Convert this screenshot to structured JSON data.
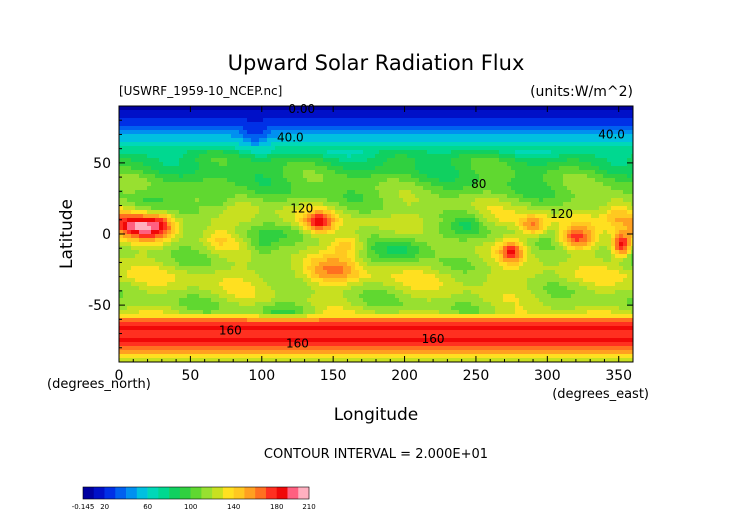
{
  "chart_data": {
    "type": "heatmap",
    "title": "Upward Solar Radiation Flux",
    "source_label": "[USWRF_1959-10_NCEP.nc]",
    "units_label": "(units:W/m^2)",
    "xlabel": "Longitude",
    "ylabel": "Latitude",
    "x_unit_label": "(degrees_east)",
    "y_unit_label": "(degrees_north)",
    "xlim": [
      0,
      360
    ],
    "ylim": [
      -90,
      90
    ],
    "x_ticks": [
      0,
      50,
      100,
      150,
      200,
      250,
      300,
      350
    ],
    "y_ticks": [
      -50,
      0,
      50
    ],
    "contour_interval_text": "CONTOUR INTERVAL = 2.000E+01",
    "contour_labels": [
      {
        "text": "0.00",
        "lon": 128,
        "lat": 88
      },
      {
        "text": "40.0",
        "lon": 120,
        "lat": 68
      },
      {
        "text": "40.0",
        "lon": 345,
        "lat": 70
      },
      {
        "text": "120",
        "lon": 128,
        "lat": 18
      },
      {
        "text": "120",
        "lon": 310,
        "lat": 14
      },
      {
        "text": "80",
        "lon": 252,
        "lat": 35
      },
      {
        "text": "160",
        "lon": 78,
        "lat": -68
      },
      {
        "text": "160",
        "lon": 125,
        "lat": -77
      },
      {
        "text": "160",
        "lon": 220,
        "lat": -74
      }
    ],
    "colorbar": {
      "tick_labels": [
        "-0.145",
        "20",
        "60",
        "100",
        "140",
        "180",
        "210"
      ],
      "tick_values": [
        -0.145,
        20,
        60,
        100,
        140,
        180,
        210
      ],
      "range": [
        -0.145,
        210
      ],
      "colors": [
        "#0000a0",
        "#0010c8",
        "#0030e6",
        "#0060f0",
        "#0090f0",
        "#00c0e0",
        "#00d8b8",
        "#00d890",
        "#10d060",
        "#30d040",
        "#60d830",
        "#98e030",
        "#c8e020",
        "#ffe020",
        "#ffc820",
        "#ffa020",
        "#ff7020",
        "#ff3020",
        "#f00808",
        "#ff6080",
        "#ffb0c0"
      ]
    }
  }
}
